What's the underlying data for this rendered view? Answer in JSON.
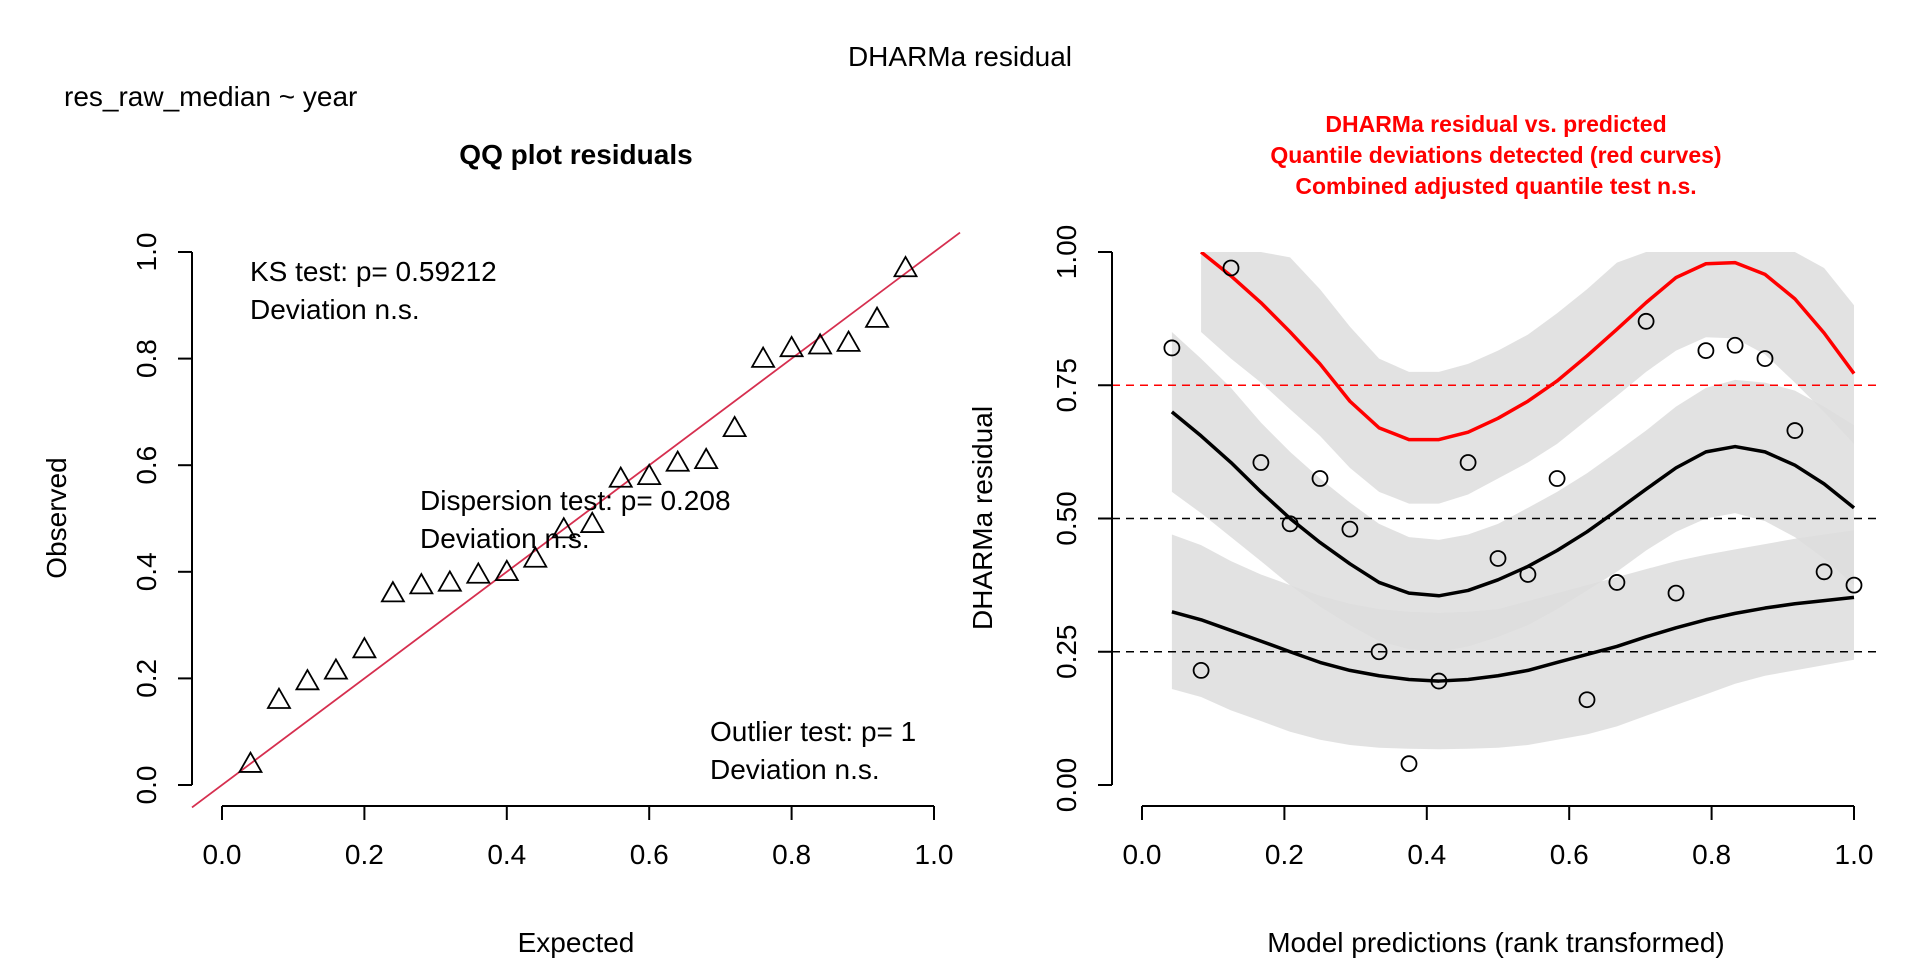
{
  "figure": {
    "title": "DHARMa residual",
    "subtitle": "res_raw_median ~ year"
  },
  "chart_data": [
    {
      "type": "scatter",
      "title": "QQ plot residuals",
      "xlabel": "Expected",
      "ylabel": "Observed",
      "xlim": [
        0,
        1
      ],
      "ylim": [
        0,
        1
      ],
      "xticks": [
        "0.0",
        "0.2",
        "0.4",
        "0.6",
        "0.8",
        "1.0"
      ],
      "yticks": [
        "0.0",
        "0.2",
        "0.4",
        "0.6",
        "0.8",
        "1.0"
      ],
      "marker": "triangle",
      "series": [
        {
          "x": [
            0.04,
            0.08,
            0.12,
            0.16,
            0.2,
            0.24,
            0.28,
            0.32,
            0.36,
            0.4,
            0.44,
            0.48,
            0.52,
            0.56,
            0.6,
            0.64,
            0.68,
            0.72,
            0.76,
            0.8,
            0.84,
            0.88,
            0.92,
            0.96
          ],
          "y": [
            0.04,
            0.16,
            0.195,
            0.215,
            0.255,
            0.36,
            0.375,
            0.38,
            0.395,
            0.4,
            0.425,
            0.48,
            0.49,
            0.575,
            0.58,
            0.605,
            0.61,
            0.67,
            0.8,
            0.82,
            0.825,
            0.83,
            0.875,
            0.97
          ]
        }
      ],
      "reference_line": {
        "intercept": 0,
        "slope": 1,
        "color": "#d62f4f"
      },
      "annotations": {
        "ks": [
          "KS test: p= 0.59212",
          "Deviation  n.s."
        ],
        "dispersion": [
          "Dispersion test: p= 0.208",
          "Deviation  n.s."
        ],
        "outlier": [
          "Outlier test: p= 1",
          "Deviation  n.s."
        ]
      }
    },
    {
      "type": "scatter",
      "title": [
        "DHARMa residual vs. predicted",
        "Quantile deviations detected (red curves)",
        "Combined adjusted quantile test n.s."
      ],
      "title_color": "#ff0000",
      "xlabel": "Model predictions (rank transformed)",
      "ylabel": "DHARMa residual",
      "xlim": [
        0,
        1
      ],
      "ylim": [
        0,
        1
      ],
      "xticks": [
        "0.0",
        "0.2",
        "0.4",
        "0.6",
        "0.8",
        "1.0"
      ],
      "yticks": [
        "0.00",
        "0.25",
        "0.50",
        "0.75",
        "1.00"
      ],
      "marker": "circle",
      "points": {
        "x": [
          0.042,
          0.083,
          0.125,
          0.167,
          0.208,
          0.25,
          0.292,
          0.333,
          0.375,
          0.417,
          0.458,
          0.5,
          0.542,
          0.583,
          0.625,
          0.667,
          0.708,
          0.75,
          0.792,
          0.833,
          0.875,
          0.917,
          0.958,
          1.0
        ],
        "y": [
          0.82,
          0.215,
          0.97,
          0.605,
          0.49,
          0.575,
          0.48,
          0.25,
          0.04,
          0.195,
          0.605,
          0.425,
          0.395,
          0.575,
          0.16,
          0.38,
          0.87,
          0.36,
          0.815,
          0.825,
          0.8,
          0.665,
          0.4,
          0.375
        ]
      },
      "reference_lines": [
        {
          "y": 0.25,
          "color": "#000000"
        },
        {
          "y": 0.5,
          "color": "#000000"
        },
        {
          "y": 0.75,
          "color": "#ff0000"
        }
      ],
      "quantile_curves": [
        {
          "quantile": 0.25,
          "color": "#000000",
          "x": [
            0.042,
            0.083,
            0.125,
            0.167,
            0.208,
            0.25,
            0.292,
            0.333,
            0.375,
            0.417,
            0.458,
            0.5,
            0.542,
            0.583,
            0.625,
            0.667,
            0.708,
            0.75,
            0.792,
            0.833,
            0.875,
            0.917,
            0.958,
            1.0
          ],
          "y": [
            0.325,
            0.31,
            0.29,
            0.27,
            0.25,
            0.23,
            0.215,
            0.205,
            0.198,
            0.195,
            0.198,
            0.205,
            0.215,
            0.23,
            0.245,
            0.26,
            0.278,
            0.295,
            0.31,
            0.322,
            0.332,
            0.34,
            0.346,
            0.352
          ],
          "band_lower": [
            0.18,
            0.165,
            0.14,
            0.12,
            0.1,
            0.085,
            0.075,
            0.07,
            0.068,
            0.067,
            0.068,
            0.07,
            0.075,
            0.085,
            0.095,
            0.11,
            0.13,
            0.15,
            0.17,
            0.19,
            0.205,
            0.215,
            0.225,
            0.235
          ],
          "band_upper": [
            0.47,
            0.45,
            0.42,
            0.395,
            0.375,
            0.355,
            0.34,
            0.33,
            0.325,
            0.323,
            0.325,
            0.33,
            0.345,
            0.36,
            0.375,
            0.39,
            0.405,
            0.42,
            0.432,
            0.442,
            0.452,
            0.462,
            0.47,
            0.478
          ]
        },
        {
          "quantile": 0.5,
          "color": "#000000",
          "x": [
            0.042,
            0.083,
            0.125,
            0.167,
            0.208,
            0.25,
            0.292,
            0.333,
            0.375,
            0.417,
            0.458,
            0.5,
            0.542,
            0.583,
            0.625,
            0.667,
            0.708,
            0.75,
            0.792,
            0.833,
            0.875,
            0.917,
            0.958,
            1.0
          ],
          "y": [
            0.7,
            0.655,
            0.605,
            0.55,
            0.5,
            0.455,
            0.415,
            0.38,
            0.36,
            0.355,
            0.365,
            0.385,
            0.41,
            0.44,
            0.475,
            0.515,
            0.555,
            0.595,
            0.625,
            0.635,
            0.625,
            0.6,
            0.565,
            0.52
          ],
          "band_lower": [
            0.55,
            0.51,
            0.465,
            0.42,
            0.375,
            0.335,
            0.3,
            0.27,
            0.255,
            0.25,
            0.26,
            0.278,
            0.3,
            0.33,
            0.365,
            0.4,
            0.44,
            0.475,
            0.5,
            0.51,
            0.495,
            0.465,
            0.425,
            0.375
          ],
          "band_upper": [
            0.85,
            0.8,
            0.745,
            0.68,
            0.625,
            0.575,
            0.53,
            0.49,
            0.465,
            0.46,
            0.47,
            0.49,
            0.52,
            0.55,
            0.585,
            0.625,
            0.665,
            0.71,
            0.745,
            0.76,
            0.755,
            0.74,
            0.71,
            0.675
          ]
        },
        {
          "quantile": 0.75,
          "color": "#ff0000",
          "x": [
            0.083,
            0.125,
            0.167,
            0.208,
            0.25,
            0.292,
            0.333,
            0.375,
            0.417,
            0.458,
            0.5,
            0.542,
            0.583,
            0.625,
            0.667,
            0.708,
            0.75,
            0.792,
            0.833,
            0.875,
            0.917,
            0.958,
            1.0
          ],
          "y": [
            1.0,
            0.955,
            0.905,
            0.85,
            0.79,
            0.72,
            0.67,
            0.648,
            0.648,
            0.662,
            0.688,
            0.72,
            0.758,
            0.805,
            0.855,
            0.905,
            0.952,
            0.978,
            0.98,
            0.958,
            0.912,
            0.848,
            0.772
          ],
          "band_lower": [
            0.85,
            0.8,
            0.755,
            0.705,
            0.655,
            0.595,
            0.55,
            0.528,
            0.528,
            0.545,
            0.575,
            0.605,
            0.64,
            0.685,
            0.73,
            0.775,
            0.815,
            0.84,
            0.838,
            0.808,
            0.755,
            0.7,
            0.64
          ],
          "band_upper": [
            1.0,
            1.0,
            1.0,
            0.99,
            0.93,
            0.86,
            0.8,
            0.775,
            0.775,
            0.79,
            0.815,
            0.845,
            0.885,
            0.93,
            0.98,
            1.0,
            1.0,
            1.0,
            1.0,
            1.0,
            1.0,
            0.97,
            0.9
          ]
        }
      ],
      "band_color": "#dddddd"
    }
  ]
}
